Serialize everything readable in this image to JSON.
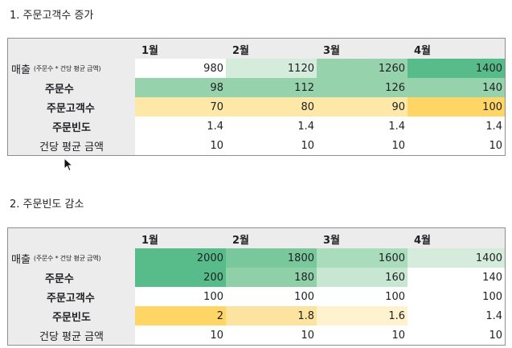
{
  "section1": {
    "title": "1. 주문고객수 증가",
    "months": [
      "1월",
      "2월",
      "3월",
      "4월"
    ],
    "rows": [
      {
        "label": "매출",
        "note": "(주문수 * 건당 평균 금액)",
        "values": [
          "980",
          "1120",
          "1260",
          "1400"
        ],
        "colors": [
          "#ffffff",
          "#d5ecdc",
          "#96d2ac",
          "#57bb8a"
        ]
      },
      {
        "label": "주문수",
        "values": [
          "98",
          "112",
          "126",
          "140"
        ],
        "colors": [
          "#96d2ac",
          "#96d2ac",
          "#96d2ac",
          "#96d2ac"
        ]
      },
      {
        "label": "주문고객수",
        "values": [
          "70",
          "80",
          "90",
          "100"
        ],
        "colors": [
          "#fde8a8",
          "#fde8a8",
          "#fde8a8",
          "#ffd666"
        ]
      },
      {
        "label": "주문빈도",
        "values": [
          "1.4",
          "1.4",
          "1.4",
          "1.4"
        ],
        "colors": [
          "#ffffff",
          "#ffffff",
          "#ffffff",
          "#ffffff"
        ]
      },
      {
        "label": "건당 평균 금액",
        "values": [
          "10",
          "10",
          "10",
          "10"
        ],
        "colors": [
          "#ffffff",
          "#ffffff",
          "#ffffff",
          "#ffffff"
        ]
      }
    ]
  },
  "section2": {
    "title": "2. 주문빈도 감소",
    "months": [
      "1월",
      "2월",
      "3월",
      "4월"
    ],
    "rows": [
      {
        "label": "매출",
        "note": "(주문수 * 건당 평균 금액)",
        "values": [
          "2000",
          "1800",
          "1600",
          "1400"
        ],
        "colors": [
          "#57bb8a",
          "#79c89c",
          "#a8dcbb",
          "#d5ecdc"
        ]
      },
      {
        "label": "주문수",
        "values": [
          "200",
          "180",
          "160",
          "140"
        ],
        "colors": [
          "#57bb8a",
          "#8fd0a8",
          "#c8e7d2",
          "#ffffff"
        ]
      },
      {
        "label": "주문고객수",
        "values": [
          "100",
          "100",
          "100",
          "100"
        ],
        "colors": [
          "#ffffff",
          "#ffffff",
          "#ffffff",
          "#ffffff"
        ]
      },
      {
        "label": "주문빈도",
        "values": [
          "2",
          "1.8",
          "1.6",
          "1.4"
        ],
        "colors": [
          "#ffd666",
          "#fde3a0",
          "#fef2cf",
          "#ffffff"
        ]
      },
      {
        "label": "건당 평균 금액",
        "values": [
          "10",
          "10",
          "10",
          "10"
        ],
        "colors": [
          "#ffffff",
          "#ffffff",
          "#ffffff",
          "#ffffff"
        ]
      }
    ]
  }
}
